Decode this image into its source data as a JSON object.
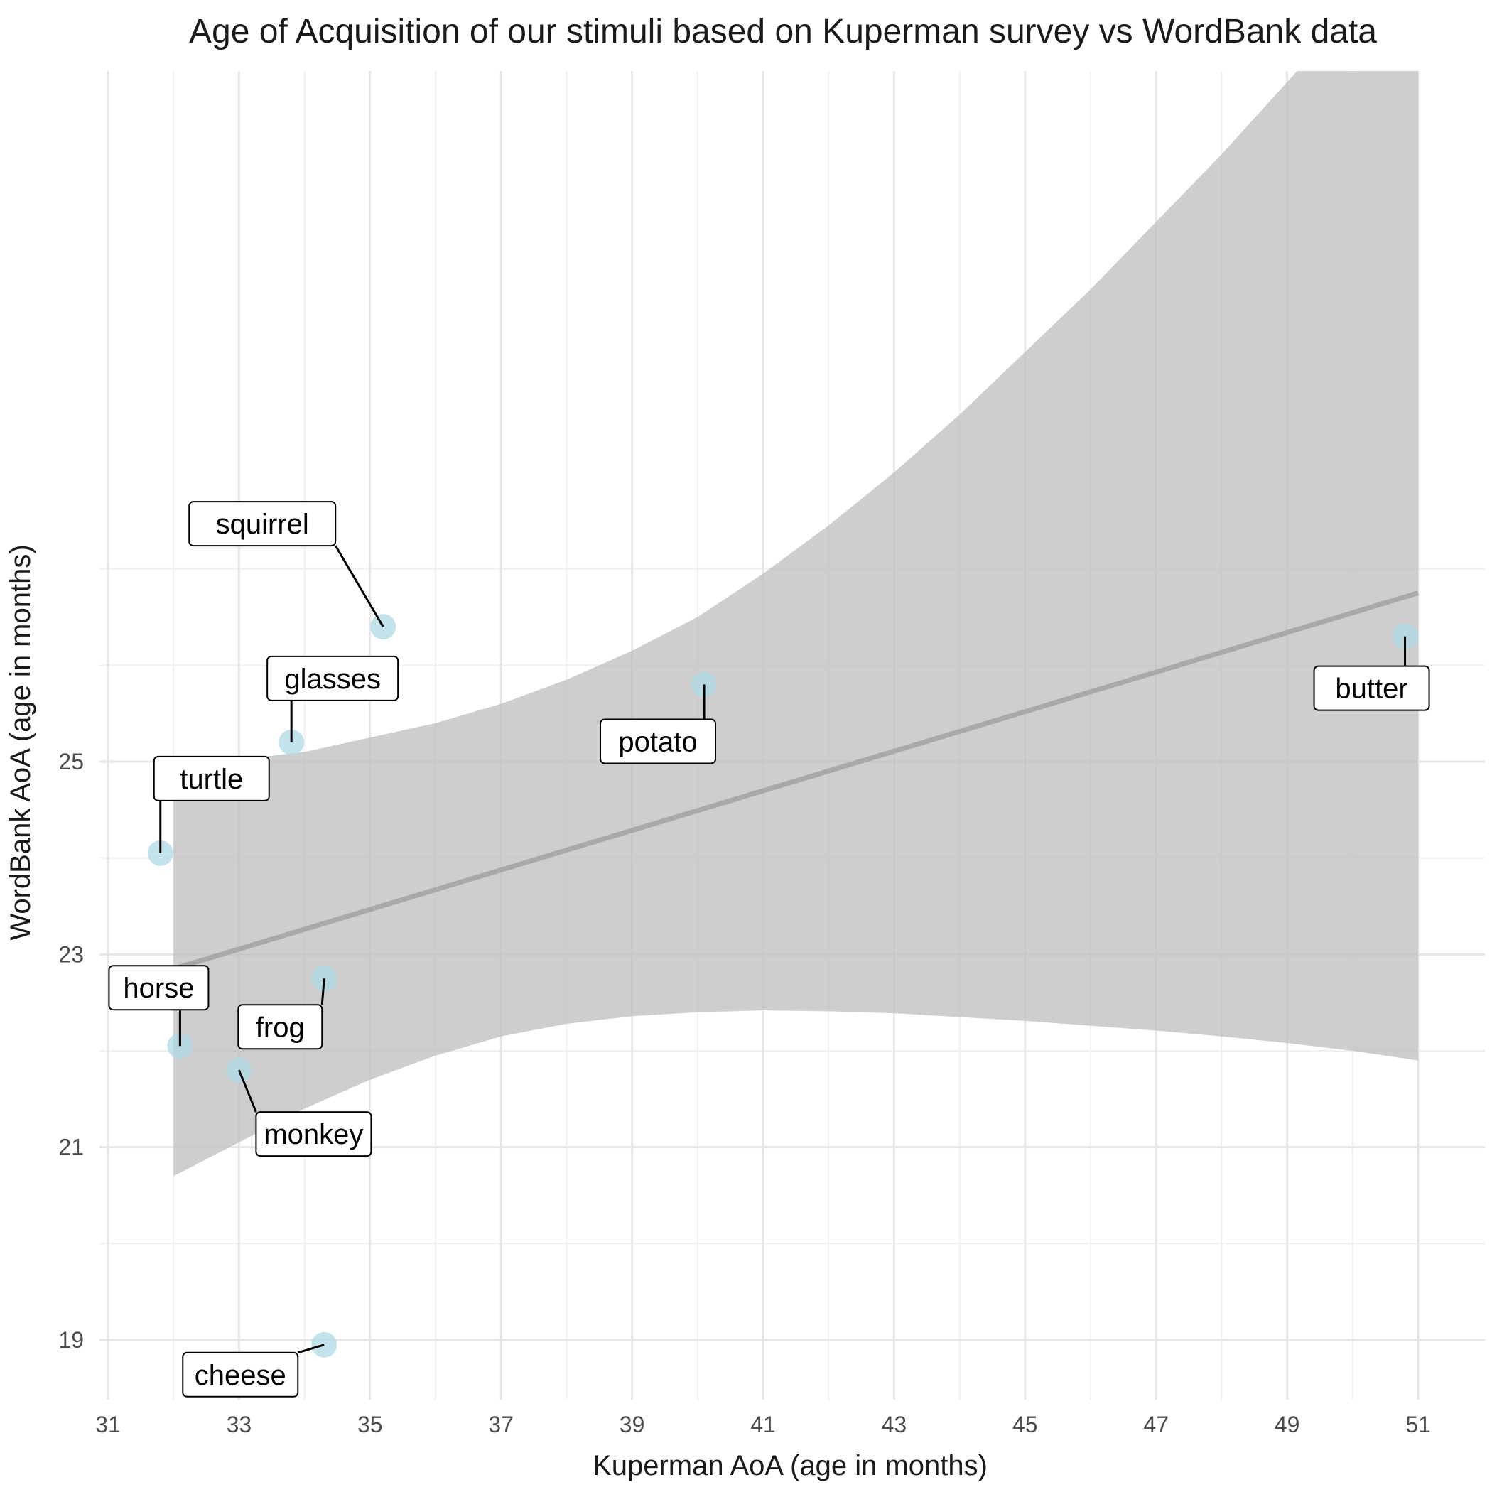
{
  "chart_data": {
    "type": "scatter",
    "title": "Age of Acquisition of our stimuli based on Kuperman survey vs WordBank data",
    "xlabel": "Kuperman AoA (age in months)",
    "ylabel": "WordBank AoA (age in months)",
    "xlim": [
      30.9,
      52.0
    ],
    "ylim": [
      18.4,
      28.2
    ],
    "x_ticks": [
      31,
      33,
      35,
      37,
      39,
      41,
      43,
      45,
      47,
      49,
      51
    ],
    "y_ticks": [
      19,
      21,
      23,
      25
    ],
    "x_minor_grid": [
      32,
      34,
      36,
      38,
      40,
      42,
      44,
      46,
      48,
      50
    ],
    "y_minor_grid": [
      20,
      22,
      24,
      26,
      27
    ],
    "grid": true,
    "point_color": "#add8e6",
    "trend_color": "#a9a9a9",
    "band_color": "#bebebe",
    "points": [
      {
        "label": "squirrel",
        "x": 35.2,
        "y": 26.4
      },
      {
        "label": "butter",
        "x": 50.8,
        "y": 26.3
      },
      {
        "label": "potato",
        "x": 40.1,
        "y": 25.8
      },
      {
        "label": "glasses",
        "x": 33.8,
        "y": 25.2
      },
      {
        "label": "turtle",
        "x": 31.8,
        "y": 24.05
      },
      {
        "label": "frog",
        "x": 34.3,
        "y": 22.75
      },
      {
        "label": "horse",
        "x": 32.1,
        "y": 22.05
      },
      {
        "label": "monkey",
        "x": 33.0,
        "y": 21.8
      },
      {
        "label": "cheese",
        "x": 34.3,
        "y": 18.95
      }
    ],
    "trend_line": {
      "x": [
        32.0,
        51.0
      ],
      "y": [
        22.85,
        26.75
      ]
    },
    "confidence_band": {
      "x": [
        32.0,
        33.0,
        34.0,
        35.0,
        36.0,
        37.0,
        38.0,
        39.0,
        40.0,
        41.0,
        42.0,
        43.0,
        44.0,
        45.0,
        46.0,
        47.0,
        48.0,
        49.0,
        50.0,
        51.0
      ],
      "upper": [
        24.95,
        25.02,
        25.1,
        25.25,
        25.4,
        25.6,
        25.85,
        26.15,
        26.5,
        26.95,
        27.45,
        28.0,
        28.6,
        29.25,
        29.9,
        30.6,
        31.3,
        32.05,
        32.8,
        33.6
      ],
      "lower": [
        20.7,
        21.05,
        21.4,
        21.7,
        21.95,
        22.15,
        22.28,
        22.36,
        22.4,
        22.42,
        22.41,
        22.39,
        22.35,
        22.31,
        22.26,
        22.21,
        22.15,
        22.08,
        22.0,
        21.9
      ]
    }
  }
}
